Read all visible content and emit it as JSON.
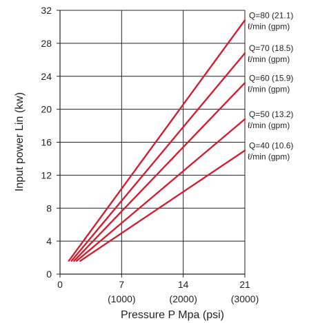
{
  "chart_data": {
    "type": "line",
    "xlabel": "Pressure P Mpa (psi)",
    "ylabel": "Input power Lin (kw)",
    "xlim": [
      0,
      22
    ],
    "ylim": [
      0,
      32
    ],
    "x_ticks": [
      "0",
      "7",
      "14",
      "21"
    ],
    "x_ticks_secondary": [
      "(1000)",
      "(2000)",
      "(3000)"
    ],
    "y_ticks": [
      "0",
      "4",
      "8",
      "12",
      "16",
      "20",
      "24",
      "28",
      "32"
    ],
    "grid": true,
    "series_color": "#d0202f",
    "series": [
      {
        "name": "Q=80 (21.1) ℓ/min (gpm)",
        "label_line1": "Q=80 (21.1)",
        "label_line2": "ℓ/min (gpm)",
        "x": [
          1.0,
          21.0
        ],
        "y": [
          1.6,
          30.8
        ]
      },
      {
        "name": "Q=70 (18.5) ℓ/min (gpm)",
        "label_line1": "Q=70 (18.5)",
        "label_line2": "ℓ/min (gpm)",
        "x": [
          1.3,
          21.0
        ],
        "y": [
          1.6,
          26.8
        ]
      },
      {
        "name": "Q=60 (15.9) ℓ/min (gpm)",
        "label_line1": "Q=60 (15.9)",
        "label_line2": "ℓ/min (gpm)",
        "x": [
          1.6,
          21.0
        ],
        "y": [
          1.6,
          23.2
        ]
      },
      {
        "name": "Q=50 (13.2) ℓ/min (gpm)",
        "label_line1": "Q=50 (13.2)",
        "label_line2": "ℓ/min (gpm)",
        "x": [
          1.9,
          21.0
        ],
        "y": [
          1.6,
          18.8
        ]
      },
      {
        "name": "Q=40 (10.6) ℓ/min (gpm)",
        "label_line1": "Q=40 (10.6)",
        "label_line2": "ℓ/min (gpm)",
        "x": [
          2.3,
          21.0
        ],
        "y": [
          1.6,
          15.0
        ]
      }
    ]
  }
}
